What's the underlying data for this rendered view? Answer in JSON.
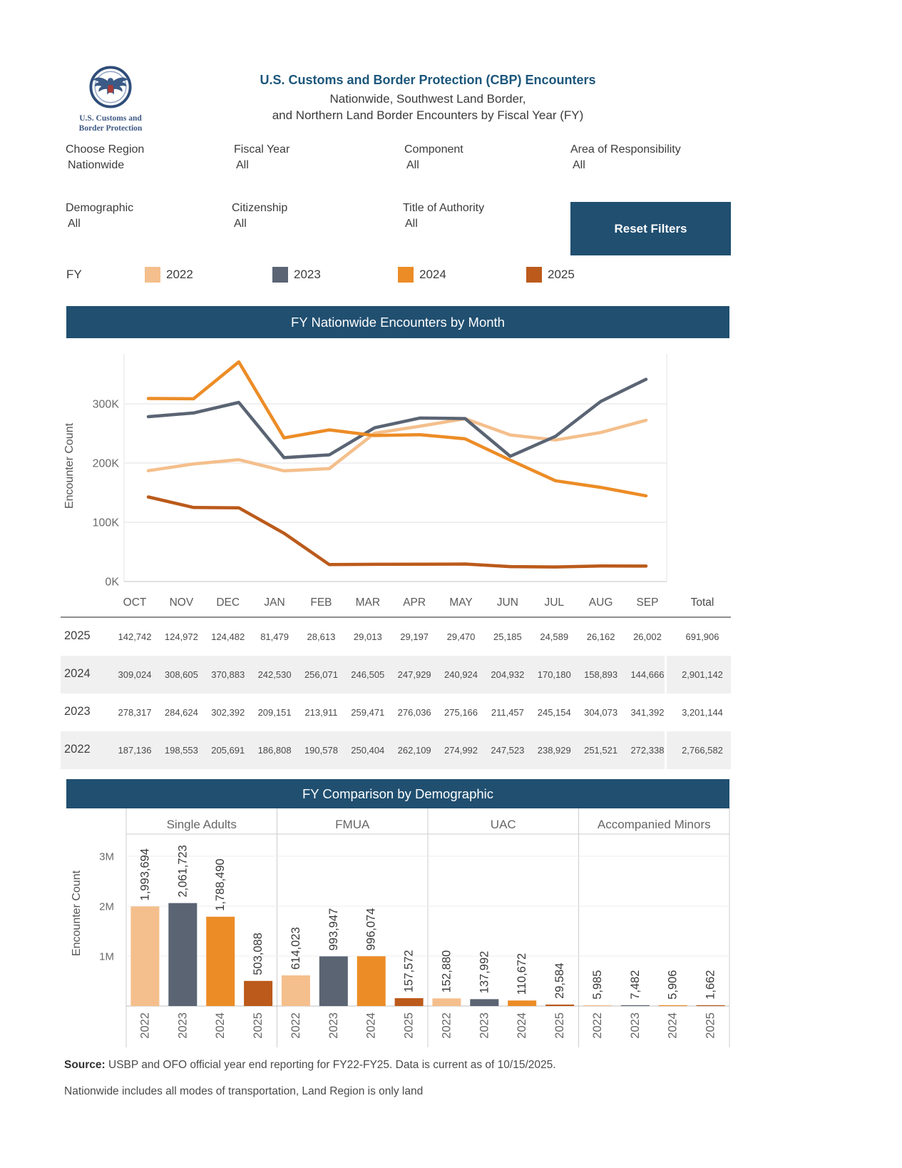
{
  "header": {
    "logo_text_line1": "U.S. Customs and",
    "logo_text_line2": "Border Protection",
    "title": "U.S. Customs and Border Protection (CBP) Encounters",
    "subtitle_line1": "Nationwide, Southwest Land Border,",
    "subtitle_line2": "and Northern Land Border Encounters by Fiscal Year (FY)"
  },
  "filters": {
    "row1": [
      {
        "label": "Choose Region",
        "value": "Nationwide"
      },
      {
        "label": "Fiscal Year",
        "value": "All"
      },
      {
        "label": "Component",
        "value": "All"
      },
      {
        "label": "Area of Responsibility",
        "value": "All"
      }
    ],
    "row2": [
      {
        "label": "Demographic",
        "value": "All"
      },
      {
        "label": "Citizenship",
        "value": "All"
      },
      {
        "label": "Title of Authority",
        "value": "All"
      }
    ],
    "reset_button_label": "Reset Filters"
  },
  "legend": {
    "label": "FY",
    "items": [
      {
        "year": "2022",
        "color": "#F4BF8C"
      },
      {
        "year": "2023",
        "color": "#5A6473"
      },
      {
        "year": "2024",
        "color": "#EC8C26"
      },
      {
        "year": "2025",
        "color": "#BB5A1B"
      }
    ]
  },
  "chart_data": [
    {
      "type": "line",
      "title": "FY Nationwide Encounters by Month",
      "ylabel": "Encounter Count",
      "x": [
        "OCT",
        "NOV",
        "DEC",
        "JAN",
        "FEB",
        "MAR",
        "APR",
        "MAY",
        "JUN",
        "JUL",
        "AUG",
        "SEP"
      ],
      "yticks": [
        {
          "v": 0,
          "label": "0K"
        },
        {
          "v": 100000,
          "label": "100K"
        },
        {
          "v": 200000,
          "label": "200K"
        },
        {
          "v": 300000,
          "label": "300K"
        }
      ],
      "ylim": [
        0,
        400000
      ],
      "grid": true,
      "series": [
        {
          "name": "2022",
          "color": "#F4BF8C",
          "values": [
            187136,
            198553,
            205691,
            186808,
            190578,
            250404,
            262109,
            274992,
            247523,
            238929,
            251521,
            272338
          ]
        },
        {
          "name": "2023",
          "color": "#5A6473",
          "values": [
            278317,
            284624,
            302392,
            209151,
            213911,
            259471,
            276036,
            275166,
            211457,
            245154,
            304073,
            341392
          ]
        },
        {
          "name": "2024",
          "color": "#EC8C26",
          "values": [
            309024,
            308605,
            370883,
            242530,
            256071,
            246505,
            247929,
            240924,
            204932,
            170180,
            158893,
            144666
          ]
        },
        {
          "name": "2025",
          "color": "#BB5A1B",
          "values": [
            142742,
            124972,
            124482,
            81479,
            28613,
            29013,
            29197,
            29470,
            25185,
            24589,
            26162,
            26002
          ]
        }
      ]
    },
    {
      "type": "bar",
      "title": "FY Comparison by Demographic",
      "ylabel": "Encounter Count",
      "yticks": [
        {
          "v": 1000000,
          "label": "1M"
        },
        {
          "v": 2000000,
          "label": "2M"
        },
        {
          "v": 3000000,
          "label": "3M"
        }
      ],
      "ylim": [
        0,
        3400000
      ],
      "categories": [
        "Single Adults",
        "FMUA",
        "UAC",
        "Accompanied Minors"
      ],
      "years": [
        "2022",
        "2023",
        "2024",
        "2025"
      ],
      "series": [
        {
          "group": "Single Adults",
          "values": [
            1993694,
            2061723,
            1788490,
            503088
          ]
        },
        {
          "group": "FMUA",
          "values": [
            614023,
            993947,
            996074,
            157572
          ]
        },
        {
          "group": "UAC",
          "values": [
            152880,
            137992,
            110672,
            29584
          ]
        },
        {
          "group": "Accompanied Minors",
          "values": [
            5985,
            7482,
            5906,
            1662
          ]
        }
      ]
    }
  ],
  "table": {
    "columns": [
      "OCT",
      "NOV",
      "DEC",
      "JAN",
      "FEB",
      "MAR",
      "APR",
      "MAY",
      "JUN",
      "JUL",
      "AUG",
      "SEP",
      "Total"
    ],
    "rows": [
      {
        "year": "2025",
        "values": [
          142742,
          124972,
          124482,
          81479,
          28613,
          29013,
          29197,
          29470,
          25185,
          24589,
          26162,
          26002
        ],
        "total": 691906,
        "shaded": false
      },
      {
        "year": "2024",
        "values": [
          309024,
          308605,
          370883,
          242530,
          256071,
          246505,
          247929,
          240924,
          204932,
          170180,
          158893,
          144666
        ],
        "total": 2901142,
        "shaded": true
      },
      {
        "year": "2023",
        "values": [
          278317,
          284624,
          302392,
          209151,
          213911,
          259471,
          276036,
          275166,
          211457,
          245154,
          304073,
          341392
        ],
        "total": 3201144,
        "shaded": false
      },
      {
        "year": "2022",
        "values": [
          187136,
          198553,
          205691,
          186808,
          190578,
          250404,
          262109,
          274992,
          247523,
          238929,
          251521,
          272338
        ],
        "total": 2766582,
        "shaded": true
      }
    ]
  },
  "footer": {
    "source_label": "Source:",
    "source_text": " USBP and OFO official year end reporting for FY22-FY25. Data is current as of 10/15/2025.",
    "note": "Nationwide includes all modes of transportation, Land Region is only land"
  }
}
